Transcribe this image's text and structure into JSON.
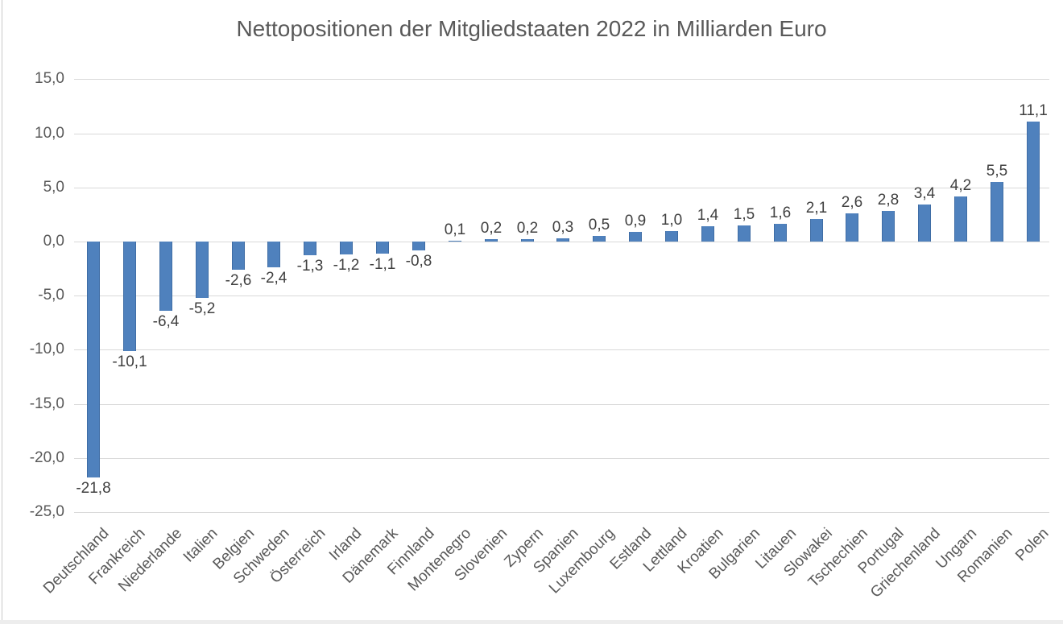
{
  "window": {
    "left_edge_color": "#c9c9c9",
    "bottom_edge_color": "#ededed"
  },
  "chart_data": {
    "type": "bar",
    "title": "Nettopositionen der Mitgliedstaaten 2022 in Milliarden Euro",
    "xlabel": "",
    "ylabel": "",
    "categories": [
      "Deutschland",
      "Frankreich",
      "Niederlande",
      "Italien",
      "Belgien",
      "Schweden",
      "Österreich",
      "Irland",
      "Dänemark",
      "Finnland",
      "Montenegro",
      "Slovenien",
      "Zypern",
      "Spanien",
      "Luxembourg",
      "Estland",
      "Lettland",
      "Kroatien",
      "Bulgarien",
      "Litauen",
      "Slowakei",
      "Tschechien",
      "Portugal",
      "Griechenland",
      "Ungarn",
      "Romanien",
      "Polen"
    ],
    "values": [
      -21.8,
      -10.1,
      -6.4,
      -5.2,
      -2.6,
      -2.4,
      -1.3,
      -1.2,
      -1.1,
      -0.8,
      0.1,
      0.2,
      0.2,
      0.3,
      0.5,
      0.9,
      1.0,
      1.4,
      1.5,
      1.6,
      2.1,
      2.6,
      2.8,
      3.4,
      4.2,
      5.5,
      11.1
    ],
    "value_labels": [
      "-21,8",
      "-10,1",
      "-6,4",
      "-5,2",
      "-2,6",
      "-2,4",
      "-1,3",
      "-1,2",
      "-1,1",
      "-0,8",
      "0,1",
      "0,2",
      "0,2",
      "0,3",
      "0,5",
      "0,9",
      "1,0",
      "1,4",
      "1,5",
      "1,6",
      "2,1",
      "2,6",
      "2,8",
      "3,4",
      "4,2",
      "5,5",
      "11,1"
    ],
    "y_tick_values": [
      15,
      10,
      5,
      0,
      -5,
      -10,
      -15,
      -20,
      -25
    ],
    "y_tick_labels": [
      "15,0",
      "10,0",
      "5,0",
      "0,0",
      "-5,0",
      "-10,0",
      "-15,0",
      "-20,0",
      "-25,0"
    ],
    "ylim": [
      -25,
      15
    ],
    "grid": true,
    "legend": false,
    "data_labels": true,
    "x_label_rotation_deg": 45,
    "bar_color": "#4f81bd",
    "bar_border_color": "#3f6da5",
    "gridline_color": "#d9d9d9",
    "title_color": "#595959",
    "axis_label_color": "#595959",
    "value_label_color": "#404040"
  }
}
